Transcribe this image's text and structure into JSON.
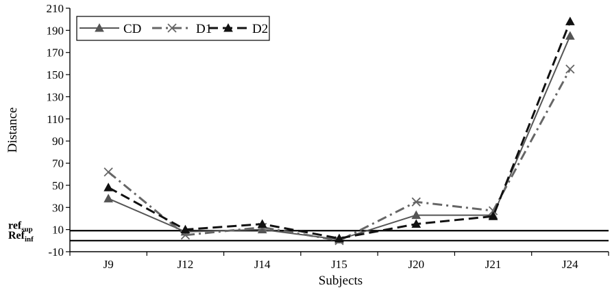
{
  "chart_data": {
    "type": "line",
    "categories": [
      "J9",
      "J12",
      "J14",
      "J15",
      "J20",
      "J21",
      "J24"
    ],
    "xlabel": "Subjects",
    "ylabel": "Distance",
    "ylim": [
      -10,
      210
    ],
    "yticks": [
      -10,
      10,
      30,
      50,
      70,
      90,
      110,
      130,
      150,
      170,
      190,
      210
    ],
    "grid": false,
    "legend_position": "top-left",
    "series": [
      {
        "name": "CD",
        "values": [
          38,
          8,
          10,
          1,
          23,
          23,
          185
        ],
        "color": "#555555",
        "line_style": "solid",
        "marker": "triangle"
      },
      {
        "name": "D1",
        "values": [
          62,
          5,
          12,
          0,
          35,
          27,
          155
        ],
        "color": "#666666",
        "line_style": "dash-dot",
        "marker": "x"
      },
      {
        "name": "D2",
        "values": [
          48,
          10,
          15,
          2,
          15,
          22,
          198
        ],
        "color": "#111111",
        "line_style": "dashed",
        "marker": "triangle"
      }
    ],
    "reference_lines": [
      {
        "label_main": "ref",
        "label_sub": "sup",
        "value": 9
      },
      {
        "label_main": "Ref",
        "label_sub": "inf",
        "value": 0
      }
    ]
  }
}
